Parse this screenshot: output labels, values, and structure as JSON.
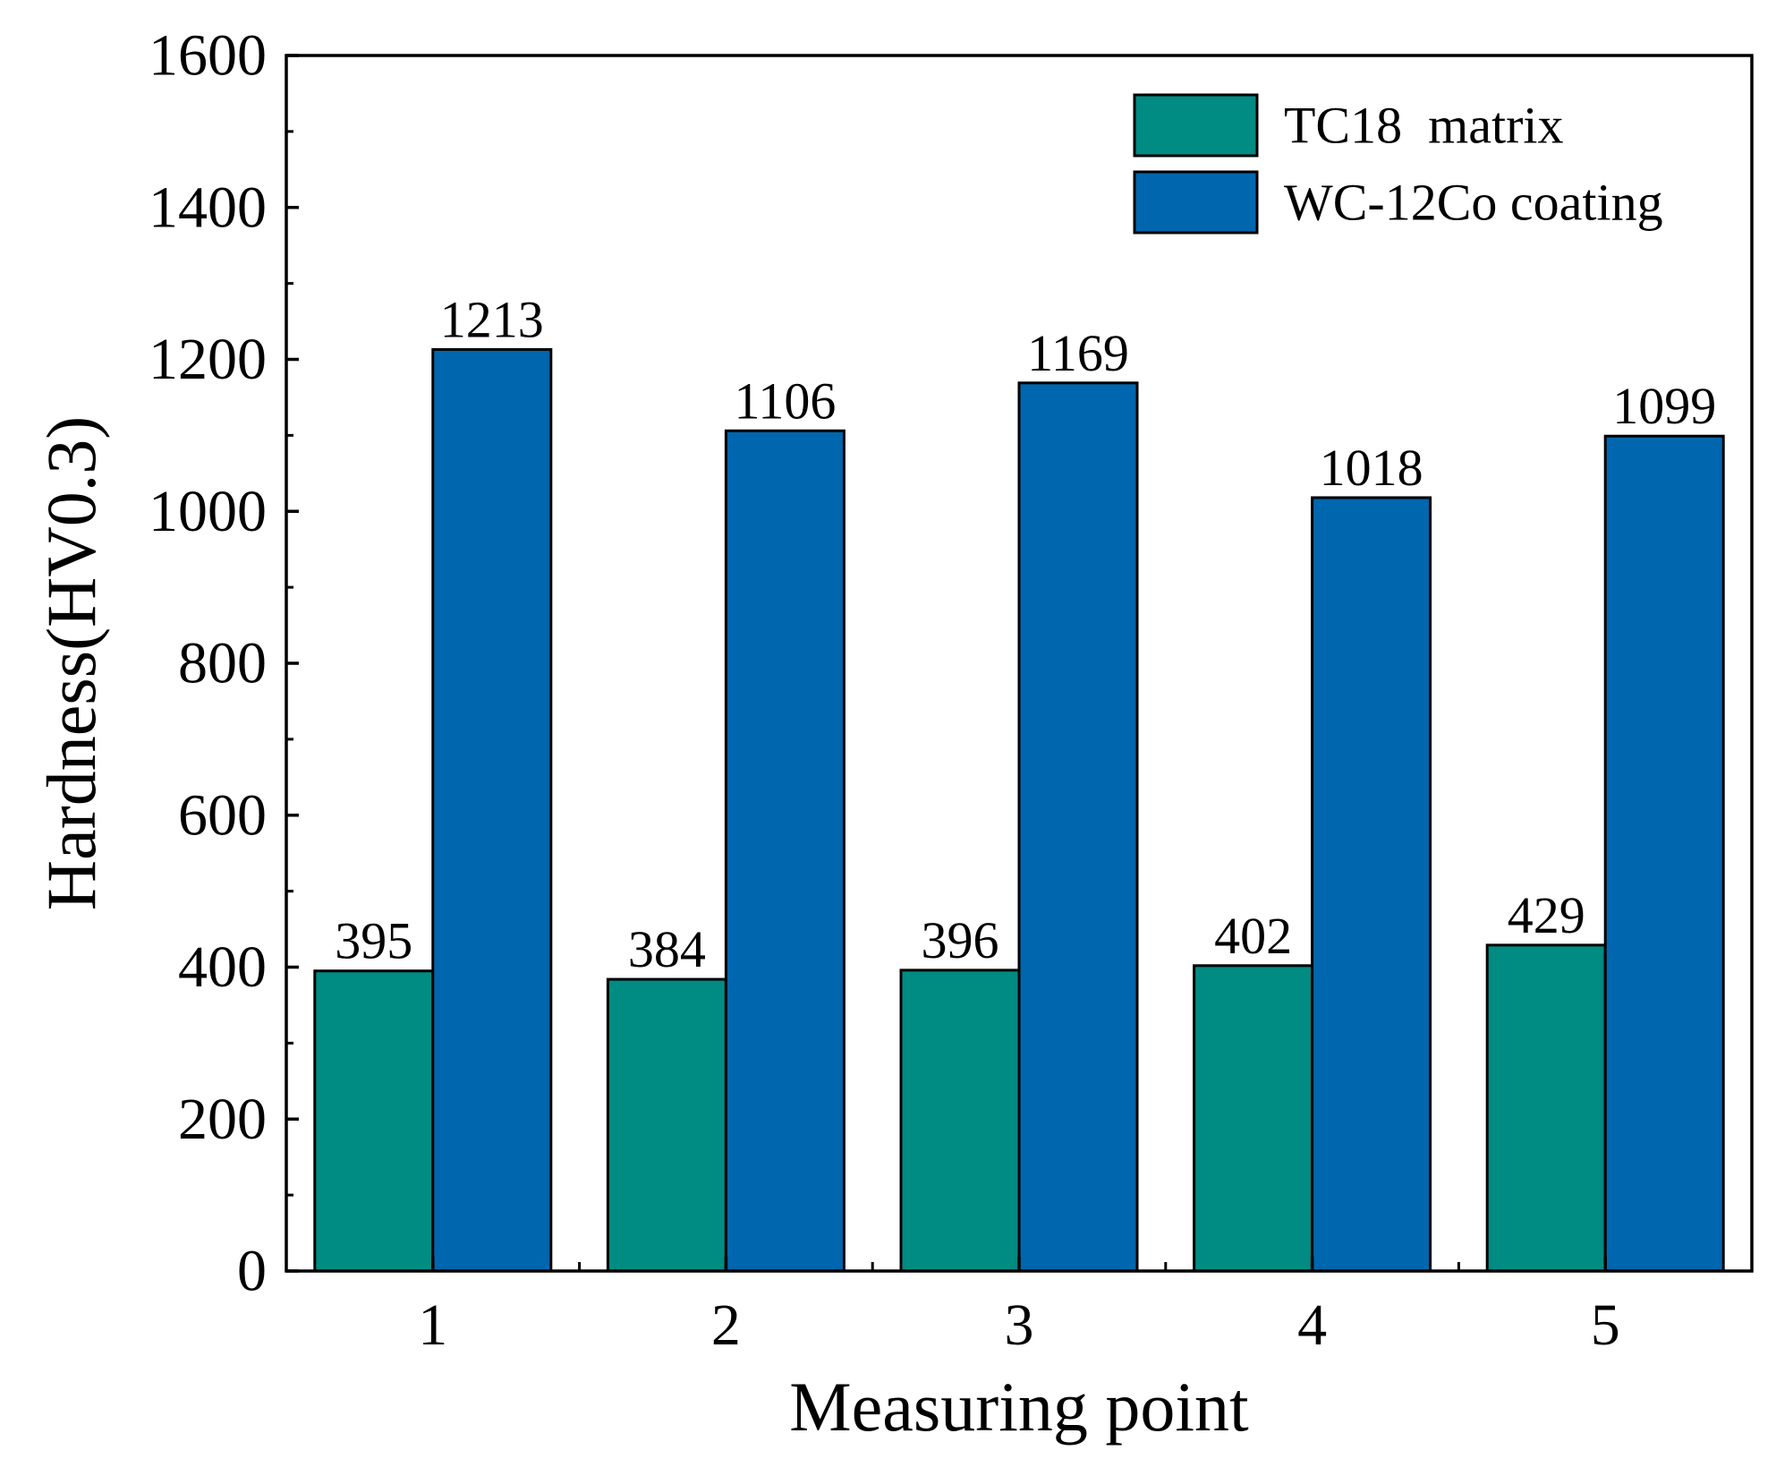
{
  "chart_data": {
    "type": "bar",
    "title": "",
    "xlabel": "Measuring point",
    "ylabel": "Hardness(HV0.3)",
    "categories": [
      "1",
      "2",
      "3",
      "4",
      "5"
    ],
    "ylim": [
      0,
      1600
    ],
    "yticks": [
      "0",
      "200",
      "400",
      "600",
      "800",
      "1000",
      "1200",
      "1400",
      "1600"
    ],
    "grid": false,
    "legend_position": "top-right",
    "series": [
      {
        "name": "TC18  matrix",
        "color": "#008B83",
        "values": [
          395,
          384,
          396,
          402,
          429
        ]
      },
      {
        "name": "WC-12Co coating",
        "color": "#0066AE",
        "values": [
          1213,
          1106,
          1169,
          1018,
          1099
        ]
      }
    ]
  }
}
